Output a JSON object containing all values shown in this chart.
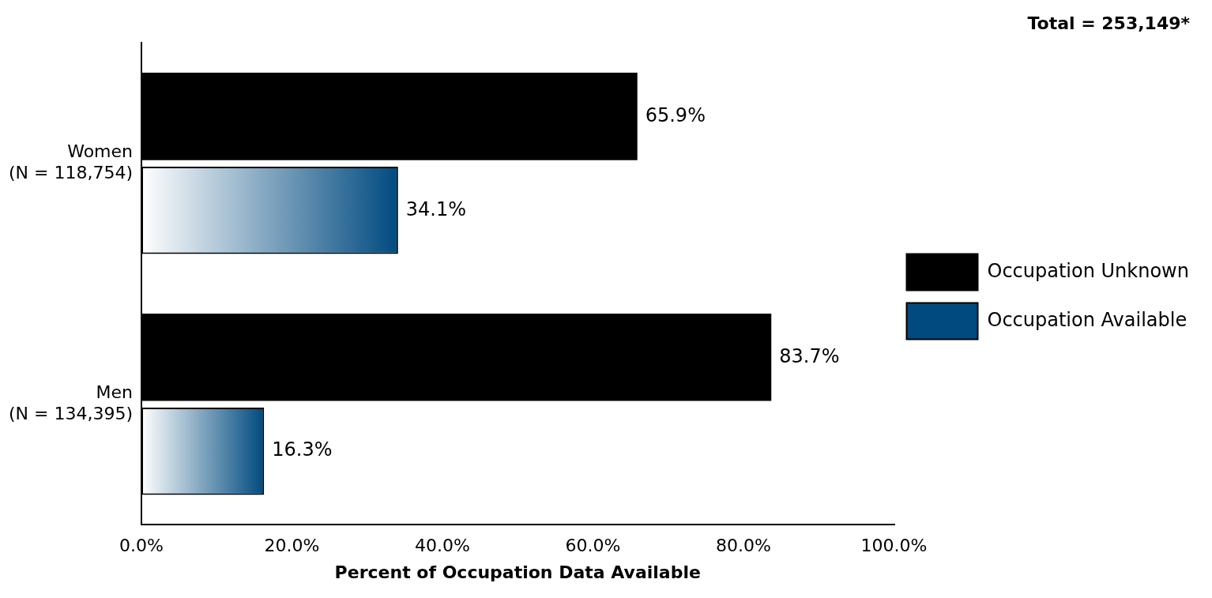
{
  "chart_data": {
    "type": "bar",
    "orientation": "horizontal",
    "title": "Total = 253,149*",
    "xlabel": "Percent of Occupation Data Available",
    "categories": [
      "Women\n(N = 118,754)",
      "Men\n(N = 134,395)"
    ],
    "series": [
      {
        "name": "Occupation Unknown",
        "color": "#000000",
        "values": [
          65.9,
          83.7
        ],
        "value_labels": [
          "65.9%",
          "83.7%"
        ]
      },
      {
        "name": "Occupation Available",
        "color": "#004a7f",
        "values": [
          34.1,
          16.3
        ],
        "value_labels": [
          "34.1%",
          "16.3%"
        ]
      }
    ],
    "xlim": [
      0,
      100
    ],
    "xticks": [
      {
        "value": 0,
        "label": "0.0%"
      },
      {
        "value": 20,
        "label": "20.0%"
      },
      {
        "value": 40,
        "label": "40.0%"
      },
      {
        "value": 60,
        "label": "60.0%"
      },
      {
        "value": 80,
        "label": "80.0%"
      },
      {
        "value": 100,
        "label": "100.0%"
      }
    ],
    "grid": false,
    "legend": "right"
  }
}
